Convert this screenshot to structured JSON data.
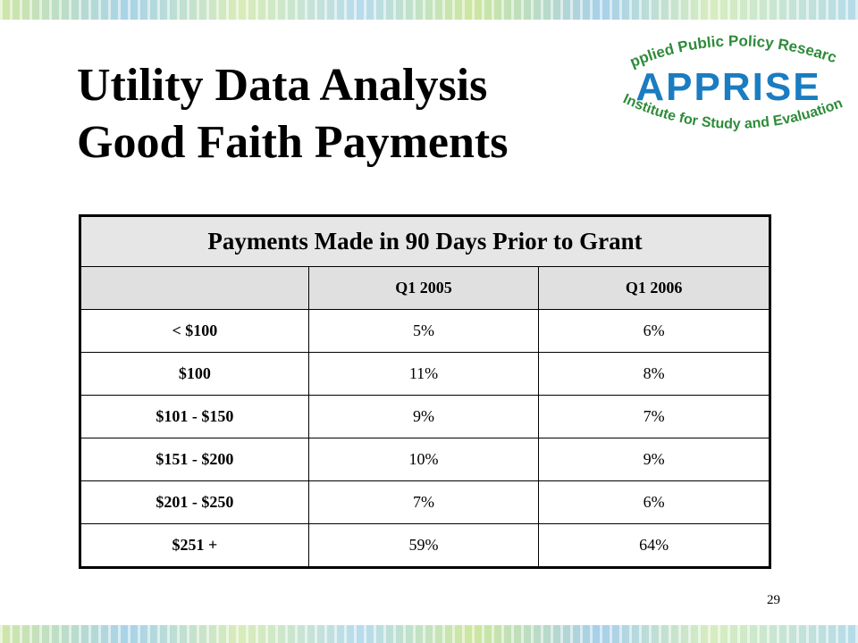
{
  "slide": {
    "title_line1": "Utility Data Analysis",
    "title_line2": "Good Faith Payments",
    "page_number": "29"
  },
  "logo": {
    "top_text": "Applied Public Policy Research",
    "main_text": "APPRISE",
    "bottom_text": "Institute for Study and Evaluation",
    "green": "#2e8b3a",
    "blue": "#1a7cc1"
  },
  "table": {
    "caption": "Payments Made in 90 Days Prior to Grant",
    "columns": [
      "",
      "Q1 2005",
      "Q1 2006"
    ],
    "rows": [
      {
        "label": "< $100",
        "q1_2005": "5%",
        "q1_2006": "6%"
      },
      {
        "label": "$100",
        "q1_2005": "11%",
        "q1_2006": "8%"
      },
      {
        "label": "$101 - $150",
        "q1_2005": "9%",
        "q1_2006": "7%"
      },
      {
        "label": "$151 - $200",
        "q1_2005": "10%",
        "q1_2006": "9%"
      },
      {
        "label": "$201 - $250",
        "q1_2005": "7%",
        "q1_2006": "6%"
      },
      {
        "label": "$251 +",
        "q1_2005": "59%",
        "q1_2006": "64%"
      }
    ]
  }
}
